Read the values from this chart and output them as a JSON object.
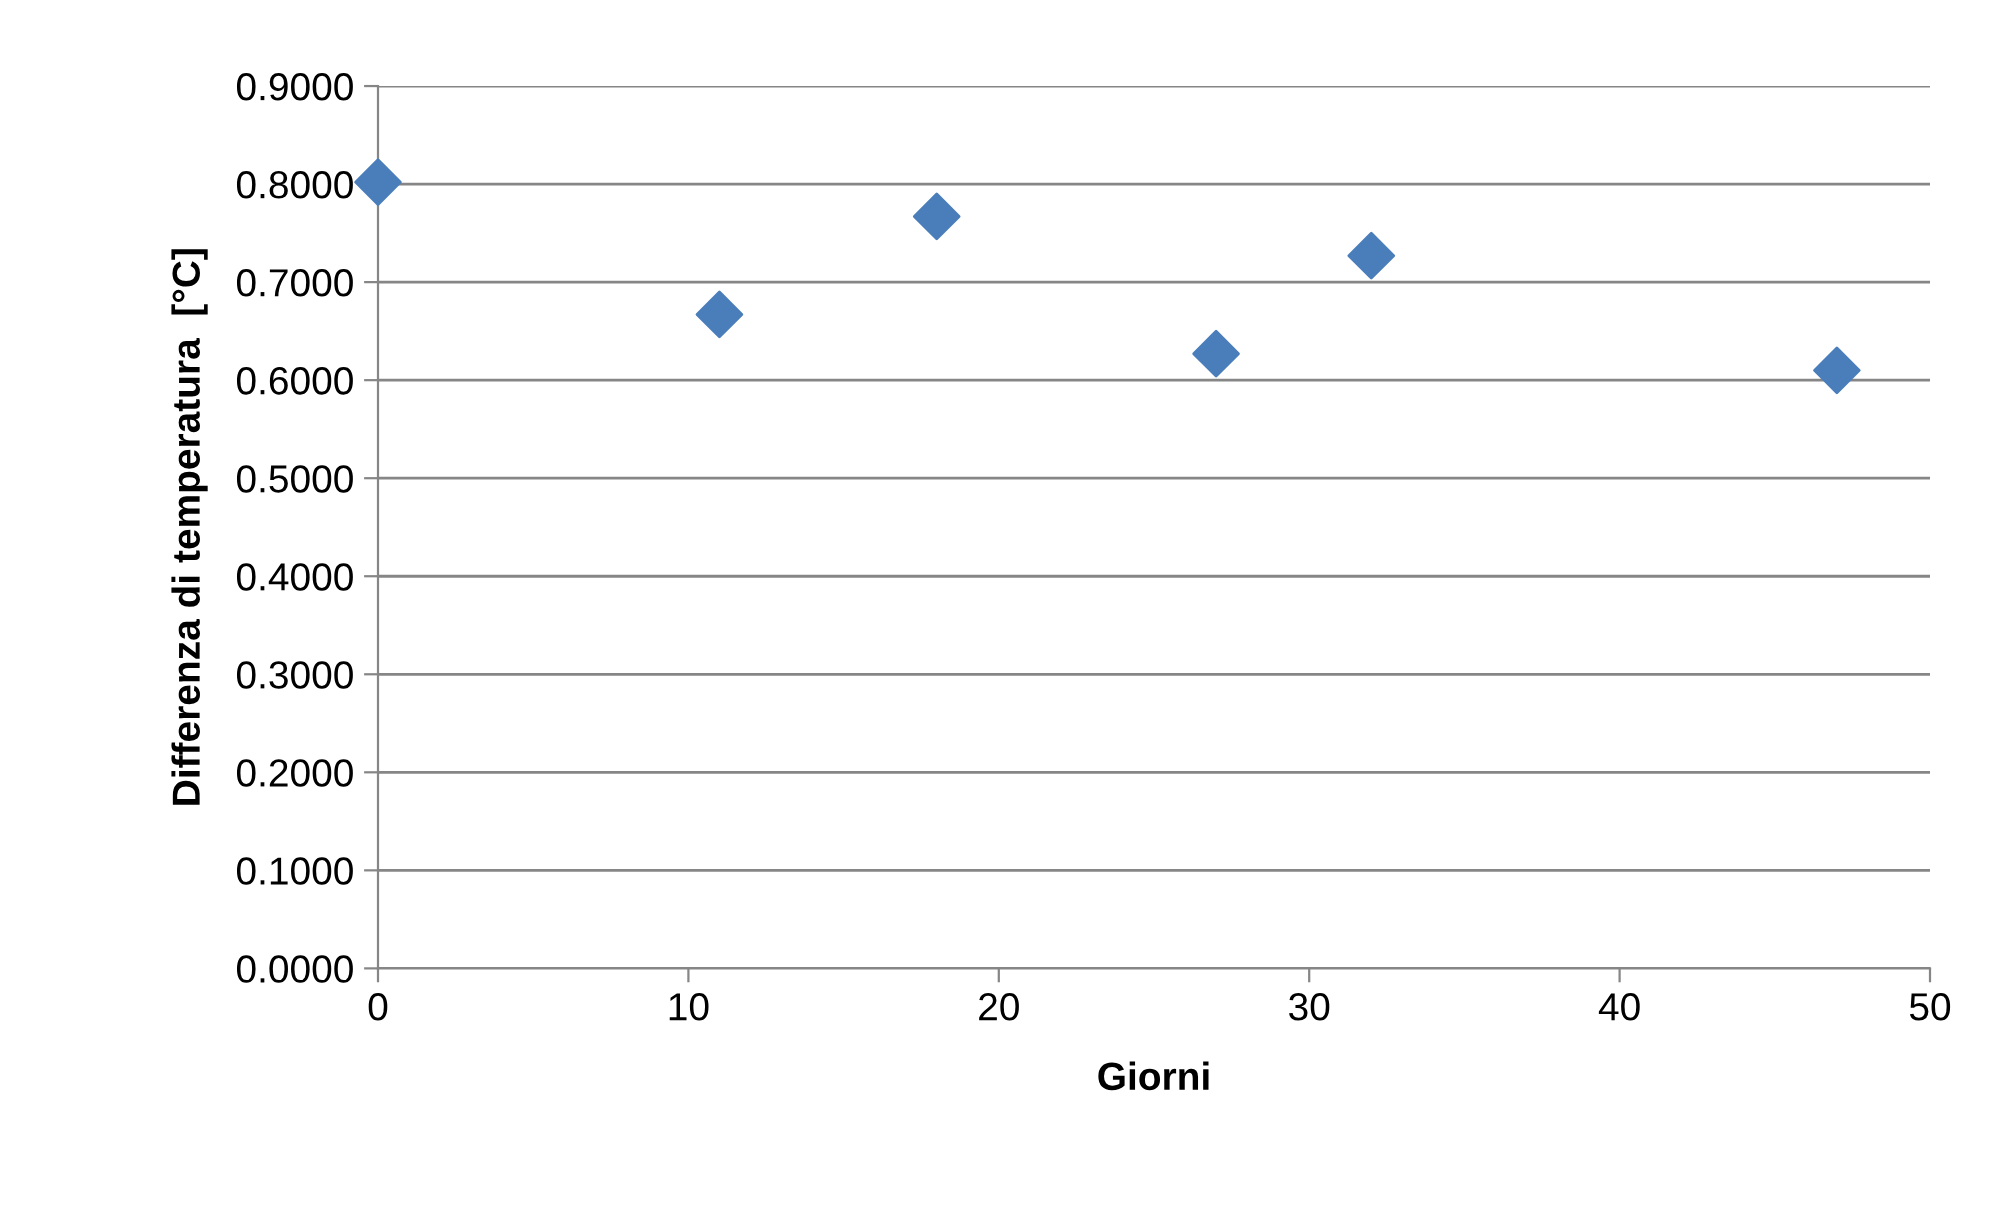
{
  "chart_data": {
    "type": "scatter",
    "xlabel": "Giorni",
    "ylabel": "Differenza di temperatura  [°C]",
    "x": [
      0,
      11,
      18,
      27,
      32,
      47
    ],
    "series": [
      {
        "color": "#4a7ebb",
        "values": [
          0.802,
          0.667,
          0.767,
          0.627,
          0.727,
          0.61
        ]
      }
    ],
    "xlim": [
      0,
      50
    ],
    "xticks": [
      0,
      10,
      20,
      30,
      40,
      50
    ],
    "ylim": [
      0,
      0.9
    ],
    "yticks": [
      {
        "value": 0,
        "label": "0.0000"
      },
      {
        "value": 0.1,
        "label": "0.1000"
      },
      {
        "value": 0.2,
        "label": "0.2000"
      },
      {
        "value": 0.3,
        "label": "0.3000"
      },
      {
        "value": 0.4,
        "label": "0.4000"
      },
      {
        "value": 0.5,
        "label": "0.5000"
      },
      {
        "value": 0.6,
        "label": "0.6000"
      },
      {
        "value": 0.7,
        "label": "0.7000"
      },
      {
        "value": 0.8,
        "label": "0.8000"
      },
      {
        "value": 0.9,
        "label": "0.9000"
      }
    ],
    "grid": "y",
    "marker": "diamond",
    "legend": false
  }
}
